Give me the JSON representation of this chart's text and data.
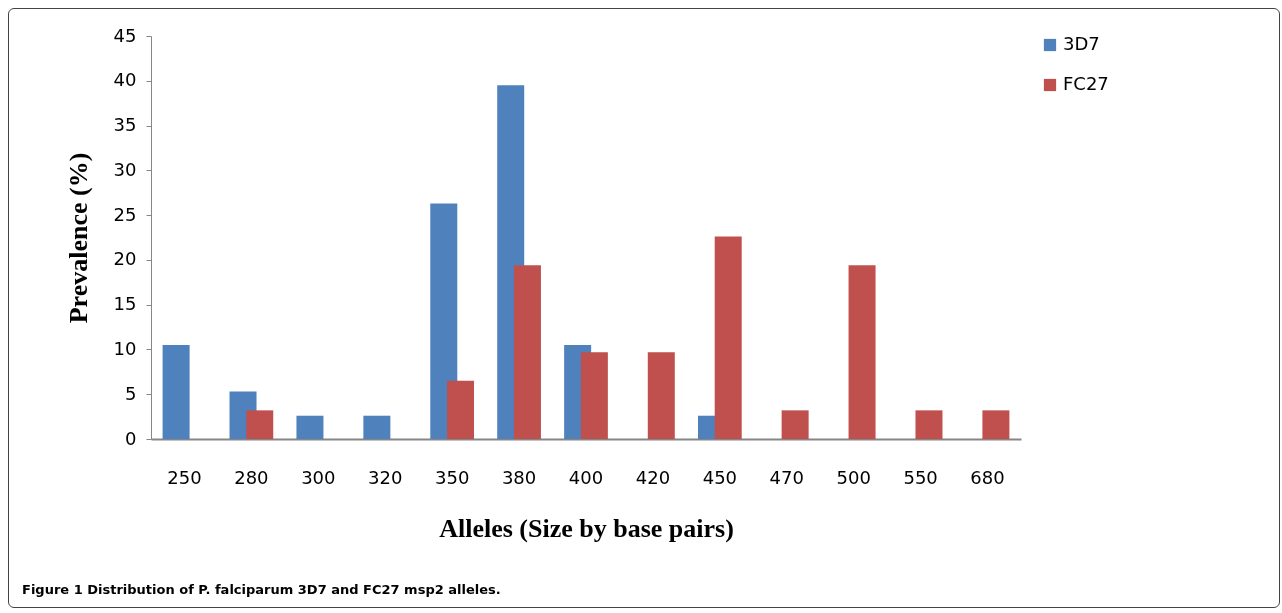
{
  "chart_data": {
    "type": "bar",
    "xlabel": "Alleles (Size by base pairs)",
    "ylabel": "Prevalence (%)",
    "categories": [
      "250",
      "280",
      "300",
      "320",
      "350",
      "380",
      "400",
      "420",
      "450",
      "470",
      "500",
      "550",
      "680"
    ],
    "series": [
      {
        "name": "3D7",
        "color": "#4f81bd",
        "values": [
          10.5,
          5.3,
          2.6,
          2.6,
          26.3,
          39.5,
          10.5,
          0,
          2.6,
          0,
          0,
          0,
          0
        ]
      },
      {
        "name": "FC27",
        "color": "#c0504d",
        "values": [
          0,
          3.2,
          0,
          0,
          6.5,
          19.4,
          9.7,
          9.7,
          22.6,
          3.2,
          19.4,
          3.2,
          3.2
        ]
      }
    ],
    "ylim": [
      0,
      45
    ],
    "yticks": [
      0,
      5,
      10,
      15,
      20,
      25,
      30,
      35,
      40,
      45
    ],
    "grid": false,
    "legend": "right",
    "annotations": [
      "Figure 1 Distribution of P. falciparum 3D7 and FC27 msp2 alleles."
    ]
  }
}
